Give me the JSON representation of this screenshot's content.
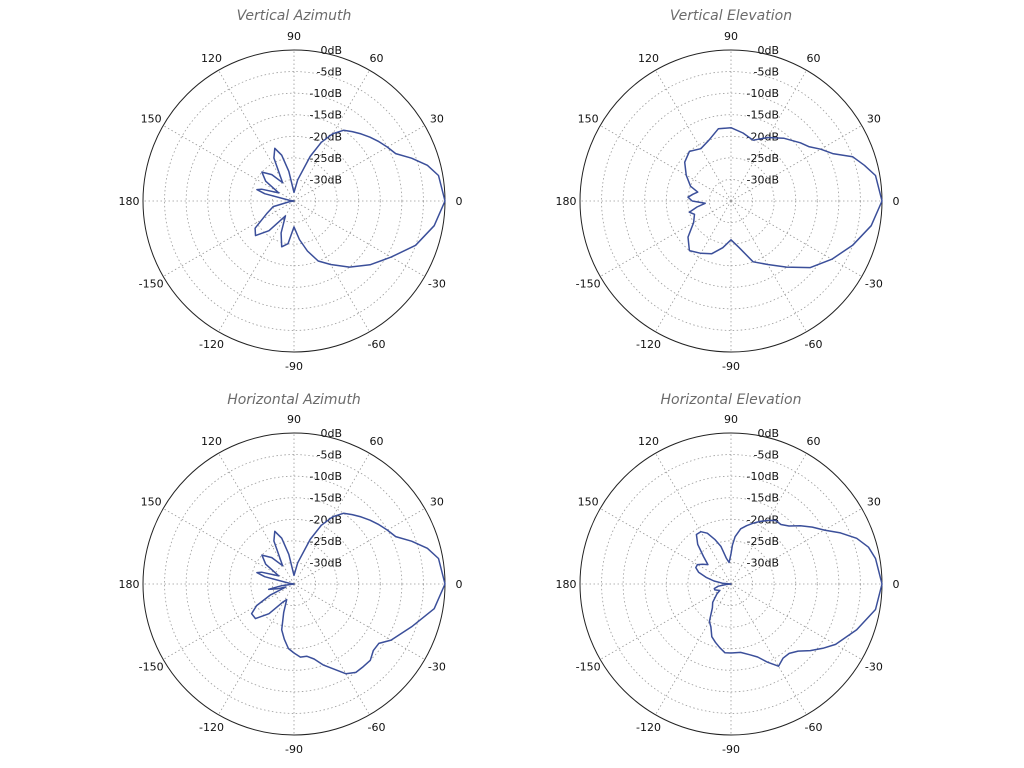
{
  "colors": {
    "pattern": "#3b4f9a",
    "grid": "#9a9a9a",
    "outer_ring": "#222222",
    "title": "#6b6b6b"
  },
  "chart_data": [
    {
      "type": "polar-line",
      "title": "Vertical Azimuth",
      "angle_unit": "degrees",
      "angle_labels": [
        "0",
        "30",
        "60",
        "90",
        "120",
        "150",
        "180",
        "-150",
        "-120",
        "-90",
        "-60",
        "-30"
      ],
      "radial_labels": [
        "0dB",
        "-5dB",
        "-10dB",
        "-15dB",
        "-20dB",
        "-25dB",
        "-30dB"
      ],
      "r_range_db": [
        -35,
        0
      ],
      "grid": true,
      "series": [
        {
          "points": [
            [
              0,
              0
            ],
            [
              10,
              -1
            ],
            [
              15,
              -3
            ],
            [
              20,
              -6
            ],
            [
              25,
              -9
            ],
            [
              30,
              -10
            ],
            [
              35,
              -11
            ],
            [
              40,
              -12
            ],
            [
              45,
              -13
            ],
            [
              50,
              -14
            ],
            [
              55,
              -15
            ],
            [
              60,
              -17
            ],
            [
              65,
              -20
            ],
            [
              70,
              -24
            ],
            [
              80,
              -30
            ],
            [
              90,
              -33
            ],
            [
              100,
              -28
            ],
            [
              105,
              -24
            ],
            [
              110,
              -22
            ],
            [
              115,
              -24
            ],
            [
              122,
              -30
            ],
            [
              130,
              -27
            ],
            [
              138,
              -25
            ],
            [
              145,
              -27
            ],
            [
              152,
              -31
            ],
            [
              160,
              -27
            ],
            [
              163,
              -26
            ],
            [
              166,
              -28
            ],
            [
              172,
              -34
            ],
            [
              180,
              -35
            ],
            [
              188,
              -34
            ],
            [
              195,
              -30
            ],
            [
              205,
              -28
            ],
            [
              215,
              -24
            ],
            [
              222,
              -23
            ],
            [
              230,
              -26
            ],
            [
              240,
              -31
            ],
            [
              248,
              -27
            ],
            [
              255,
              -24
            ],
            [
              262,
              -25
            ],
            [
              270,
              -29
            ],
            [
              278,
              -26
            ],
            [
              285,
              -23
            ],
            [
              292,
              -20
            ],
            [
              300,
              -18
            ],
            [
              310,
              -15
            ],
            [
              320,
              -12
            ],
            [
              330,
              -9
            ],
            [
              340,
              -5
            ],
            [
              350,
              -2
            ],
            [
              360,
              0
            ]
          ]
        }
      ]
    },
    {
      "type": "polar-line",
      "title": "Vertical Elevation",
      "angle_unit": "degrees",
      "angle_labels": [
        "0",
        "30",
        "60",
        "90",
        "120",
        "150",
        "180",
        "-150",
        "-120",
        "-90",
        "-60",
        "-30"
      ],
      "radial_labels": [
        "0dB",
        "-5dB",
        "-10dB",
        "-15dB",
        "-20dB",
        "-25dB",
        "-30dB"
      ],
      "r_range_db": [
        -35,
        0
      ],
      "grid": true,
      "series": [
        {
          "points": [
            [
              0,
              0
            ],
            [
              10,
              -1
            ],
            [
              15,
              -3
            ],
            [
              20,
              -5
            ],
            [
              25,
              -9
            ],
            [
              30,
              -11
            ],
            [
              35,
              -13
            ],
            [
              40,
              -14
            ],
            [
              50,
              -16
            ],
            [
              60,
              -18
            ],
            [
              70,
              -20
            ],
            [
              80,
              -19
            ],
            [
              90,
              -18
            ],
            [
              100,
              -18
            ],
            [
              110,
              -20
            ],
            [
              120,
              -21
            ],
            [
              130,
              -20
            ],
            [
              140,
              -21
            ],
            [
              150,
              -23
            ],
            [
              160,
              -25
            ],
            [
              165,
              -27
            ],
            [
              170,
              -26
            ],
            [
              175,
              -25
            ],
            [
              180,
              -26
            ],
            [
              185,
              -29
            ],
            [
              190,
              -27
            ],
            [
              195,
              -25
            ],
            [
              200,
              -26
            ],
            [
              210,
              -25
            ],
            [
              220,
              -22
            ],
            [
              230,
              -20
            ],
            [
              240,
              -21
            ],
            [
              250,
              -22
            ],
            [
              260,
              -24
            ],
            [
              270,
              -26
            ],
            [
              280,
              -24
            ],
            [
              290,
              -20
            ],
            [
              300,
              -18
            ],
            [
              310,
              -15
            ],
            [
              320,
              -11
            ],
            [
              330,
              -8
            ],
            [
              340,
              -5
            ],
            [
              350,
              -2
            ],
            [
              360,
              0
            ]
          ]
        }
      ]
    },
    {
      "type": "polar-line",
      "title": "Horizontal Azimuth",
      "angle_unit": "degrees",
      "angle_labels": [
        "0",
        "30",
        "60",
        "90",
        "120",
        "150",
        "180",
        "-150",
        "-120",
        "-90",
        "-60",
        "-30"
      ],
      "radial_labels": [
        "0dB",
        "-5dB",
        "-10dB",
        "-15dB",
        "-20dB",
        "-25dB",
        "-30dB"
      ],
      "r_range_db": [
        -35,
        0
      ],
      "grid": true,
      "series": [
        {
          "points": [
            [
              0,
              0
            ],
            [
              10,
              -1
            ],
            [
              15,
              -3
            ],
            [
              20,
              -6
            ],
            [
              25,
              -9
            ],
            [
              30,
              -10
            ],
            [
              35,
              -11
            ],
            [
              40,
              -12
            ],
            [
              45,
              -13
            ],
            [
              50,
              -14
            ],
            [
              55,
              -15
            ],
            [
              60,
              -17
            ],
            [
              65,
              -20
            ],
            [
              70,
              -24
            ],
            [
              80,
              -30
            ],
            [
              90,
              -33
            ],
            [
              100,
              -28
            ],
            [
              105,
              -24
            ],
            [
              110,
              -22
            ],
            [
              115,
              -24
            ],
            [
              122,
              -30
            ],
            [
              130,
              -27
            ],
            [
              138,
              -25
            ],
            [
              145,
              -27
            ],
            [
              152,
              -31
            ],
            [
              160,
              -27
            ],
            [
              163,
              -26
            ],
            [
              166,
              -28
            ],
            [
              172,
              -34
            ],
            [
              180,
              -35
            ],
            [
              188,
              -32
            ],
            [
              192,
              -29
            ],
            [
              196,
              -31
            ],
            [
              200,
              -33
            ],
            [
              205,
              -29
            ],
            [
              210,
              -25
            ],
            [
              215,
              -23
            ],
            [
              222,
              -23
            ],
            [
              230,
              -26
            ],
            [
              238,
              -30
            ],
            [
              245,
              -31
            ],
            [
              250,
              -28
            ],
            [
              255,
              -24
            ],
            [
              260,
              -22
            ],
            [
              265,
              -20
            ],
            [
              270,
              -19
            ],
            [
              275,
              -18
            ],
            [
              280,
              -18
            ],
            [
              285,
              -17
            ],
            [
              290,
              -15
            ],
            [
              300,
              -11
            ],
            [
              305,
              -10
            ],
            [
              310,
              -10
            ],
            [
              315,
              -10
            ],
            [
              320,
              -11
            ],
            [
              325,
              -11
            ],
            [
              330,
              -9
            ],
            [
              340,
              -6
            ],
            [
              350,
              -2
            ],
            [
              360,
              0
            ]
          ]
        }
      ]
    },
    {
      "type": "polar-line",
      "title": "Horizontal Elevation",
      "angle_unit": "degrees",
      "angle_labels": [
        "0",
        "30",
        "60",
        "90",
        "120",
        "150",
        "180",
        "-150",
        "-120",
        "-90",
        "-60",
        "-30"
      ],
      "radial_labels": [
        "0dB",
        "-5dB",
        "-10dB",
        "-15dB",
        "-20dB",
        "-25dB",
        "-30dB"
      ],
      "r_range_db": [
        -35,
        0
      ],
      "grid": true,
      "series": [
        {
          "points": [
            [
              0,
              0
            ],
            [
              10,
              -1
            ],
            [
              15,
              -2
            ],
            [
              20,
              -4
            ],
            [
              25,
              -7
            ],
            [
              30,
              -10
            ],
            [
              35,
              -12
            ],
            [
              40,
              -14
            ],
            [
              45,
              -16
            ],
            [
              50,
              -17
            ],
            [
              55,
              -17
            ],
            [
              60,
              -18
            ],
            [
              65,
              -19
            ],
            [
              70,
              -20
            ],
            [
              75,
              -21
            ],
            [
              80,
              -22
            ],
            [
              85,
              -24
            ],
            [
              88,
              -26
            ],
            [
              90,
              -28
            ],
            [
              95,
              -30
            ],
            [
              100,
              -29
            ],
            [
              105,
              -26
            ],
            [
              110,
              -24
            ],
            [
              115,
              -22
            ],
            [
              120,
              -21
            ],
            [
              125,
              -21
            ],
            [
              130,
              -23
            ],
            [
              135,
              -26
            ],
            [
              140,
              -28
            ],
            [
              145,
              -27
            ],
            [
              150,
              -26
            ],
            [
              155,
              -26
            ],
            [
              160,
              -27
            ],
            [
              165,
              -29
            ],
            [
              170,
              -31
            ],
            [
              175,
              -33
            ],
            [
              180,
              -35
            ],
            [
              185,
              -34
            ],
            [
              190,
              -32
            ],
            [
              195,
              -31
            ],
            [
              200,
              -31
            ],
            [
              210,
              -32
            ],
            [
              215,
              -31
            ],
            [
              225,
              -29
            ],
            [
              232,
              -28
            ],
            [
              240,
              -25
            ],
            [
              245,
              -24
            ],
            [
              250,
              -22
            ],
            [
              255,
              -21
            ],
            [
              260,
              -20
            ],
            [
              265,
              -19
            ],
            [
              270,
              -19
            ],
            [
              278,
              -19
            ],
            [
              285,
              -18
            ],
            [
              290,
              -17
            ],
            [
              295,
              -15
            ],
            [
              300,
              -13
            ],
            [
              305,
              -14
            ],
            [
              310,
              -14
            ],
            [
              315,
              -13
            ],
            [
              320,
              -11
            ],
            [
              325,
              -9
            ],
            [
              330,
              -7
            ],
            [
              340,
              -4
            ],
            [
              350,
              -1
            ],
            [
              360,
              0
            ]
          ]
        }
      ]
    }
  ]
}
